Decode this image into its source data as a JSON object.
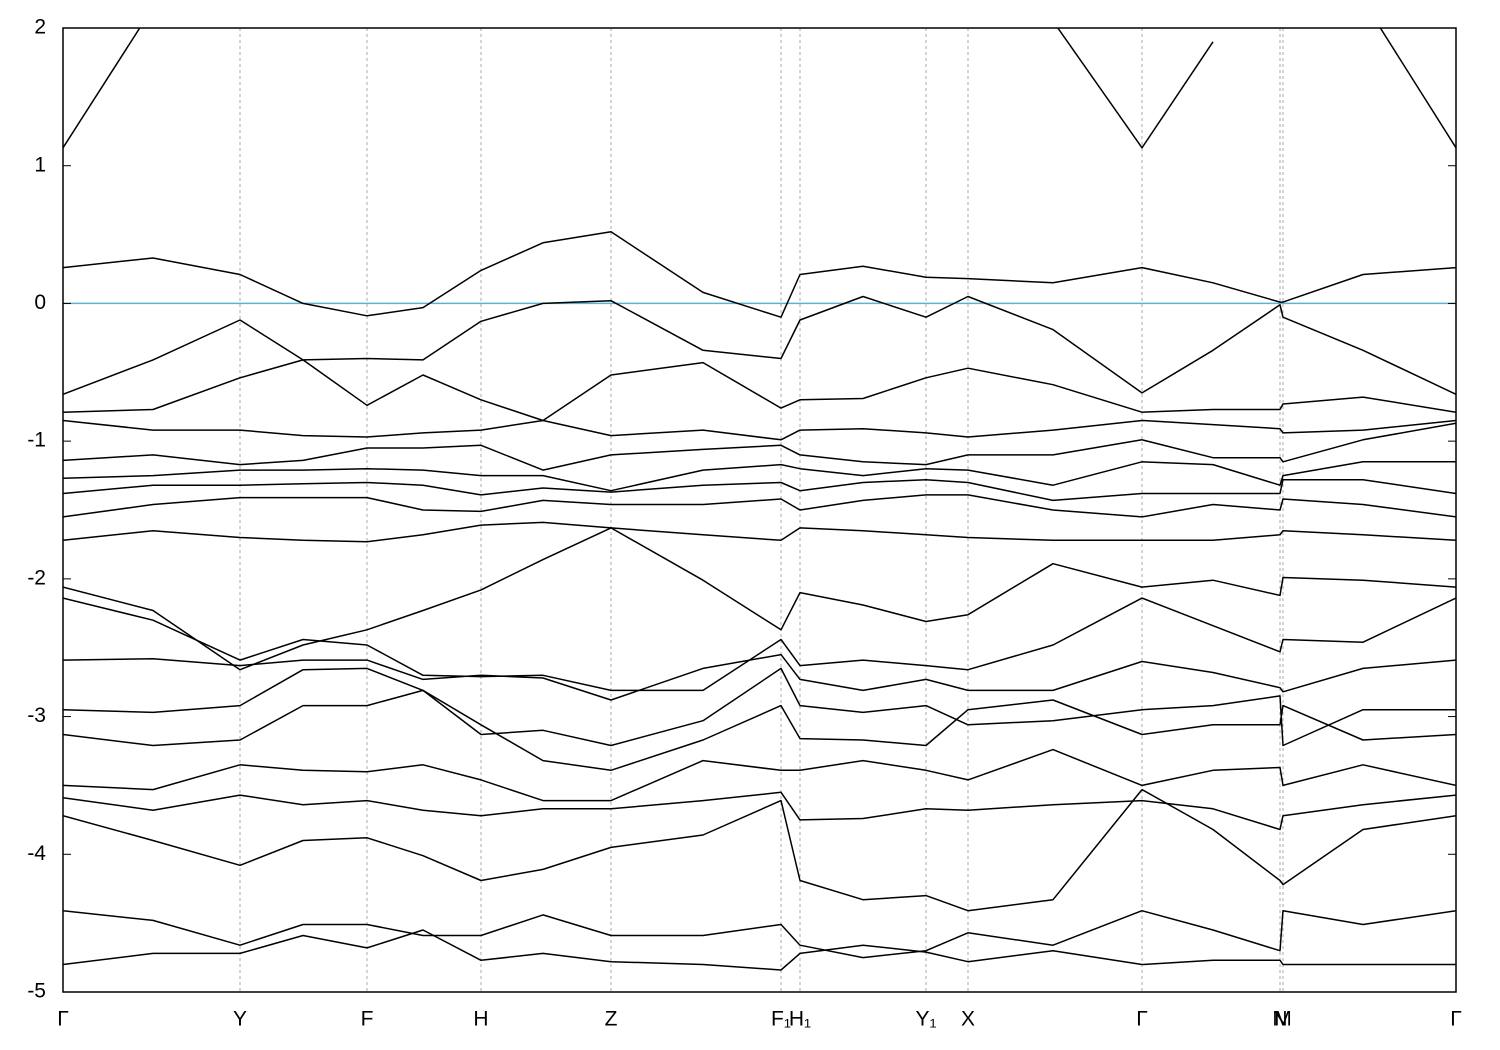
{
  "chart_data": {
    "type": "line",
    "color": "#000000",
    "grid": true,
    "xlim": [
      0,
      1393
    ],
    "ylim": [
      -5,
      2
    ],
    "yticks": [
      2,
      1,
      0,
      -1,
      -2,
      -3,
      -4,
      -5
    ],
    "xticks": [
      {
        "value": 0,
        "label": "Γ"
      },
      {
        "value": 177,
        "label": "Y"
      },
      {
        "value": 304,
        "label": "F"
      },
      {
        "value": 418,
        "label": "H"
      },
      {
        "value": 548,
        "label": "Z"
      },
      {
        "value": 718,
        "label": "F₁"
      },
      {
        "value": 737,
        "label": "H₁"
      },
      {
        "value": 863,
        "label": "Y₁"
      },
      {
        "value": 905,
        "label": "X"
      },
      {
        "value": 1079,
        "label": "Γ"
      },
      {
        "value": 1217,
        "label": "N"
      },
      {
        "value": 1220,
        "label": "M"
      },
      {
        "value": 1393,
        "label": "Γ"
      }
    ],
    "hline": {
      "value": 0,
      "color": "#5ab4d0"
    },
    "x": [
      0,
      90,
      177,
      240,
      304,
      360,
      418,
      480,
      548,
      640,
      718,
      737,
      800,
      863,
      905,
      990,
      1079,
      1150,
      1217,
      1220,
      1300,
      1393
    ],
    "series": [
      {
        "values": [
          1.13,
          2.15,
          null,
          null,
          null,
          null,
          null,
          null,
          null,
          null,
          null,
          null,
          null,
          null,
          null,
          2.05,
          1.13,
          1.9,
          null,
          null,
          2.2,
          1.13
        ]
      },
      {
        "values": [
          0.26,
          0.33,
          0.21,
          0.0,
          -0.09,
          -0.03,
          0.24,
          0.44,
          0.52,
          0.08,
          -0.1,
          0.21,
          0.27,
          0.19,
          0.18,
          0.15,
          0.26,
          0.15,
          0.01,
          0.01,
          0.21,
          0.26
        ]
      },
      {
        "values": [
          -0.66,
          -0.41,
          -0.12,
          -0.41,
          -0.4,
          -0.41,
          -0.13,
          0.0,
          0.02,
          -0.34,
          -0.4,
          -0.12,
          0.05,
          -0.1,
          0.05,
          -0.19,
          -0.65,
          -0.34,
          -0.01,
          -0.1,
          -0.34,
          -0.66
        ]
      },
      {
        "values": [
          -0.79,
          -0.77,
          -0.54,
          -0.41,
          -0.74,
          -0.52,
          -0.7,
          -0.85,
          -0.52,
          -0.43,
          -0.76,
          -0.7,
          -0.69,
          -0.54,
          -0.47,
          -0.59,
          -0.79,
          -0.77,
          -0.77,
          -0.73,
          -0.68,
          -0.79
        ]
      },
      {
        "values": [
          -0.85,
          -0.92,
          -0.92,
          -0.96,
          -0.97,
          -0.94,
          -0.92,
          -0.85,
          -0.96,
          -0.92,
          -0.99,
          -0.92,
          -0.91,
          -0.94,
          -0.97,
          -0.92,
          -0.85,
          -0.88,
          -0.91,
          -0.94,
          -0.92,
          -0.85
        ]
      },
      {
        "values": [
          -1.14,
          -1.1,
          -1.17,
          -1.14,
          -1.05,
          -1.05,
          -1.03,
          -1.21,
          -1.1,
          -1.06,
          -1.03,
          -1.1,
          -1.15,
          -1.17,
          -1.1,
          -1.1,
          -0.99,
          -1.12,
          -1.12,
          -1.15,
          -0.99,
          -0.87
        ]
      },
      {
        "values": [
          -1.27,
          -1.25,
          -1.21,
          -1.21,
          -1.2,
          -1.21,
          -1.25,
          -1.25,
          -1.36,
          -1.21,
          -1.17,
          -1.2,
          -1.25,
          -1.2,
          -1.21,
          -1.32,
          -1.15,
          -1.17,
          -1.32,
          -1.25,
          -1.15,
          -1.15
        ]
      },
      {
        "values": [
          -1.38,
          -1.32,
          -1.32,
          -1.31,
          -1.3,
          -1.32,
          -1.39,
          -1.34,
          -1.37,
          -1.32,
          -1.3,
          -1.36,
          -1.3,
          -1.28,
          -1.3,
          -1.43,
          -1.38,
          -1.38,
          -1.38,
          -1.28,
          -1.28,
          -1.38
        ]
      },
      {
        "values": [
          -1.55,
          -1.46,
          -1.41,
          -1.41,
          -1.41,
          -1.5,
          -1.51,
          -1.43,
          -1.46,
          -1.46,
          -1.42,
          -1.5,
          -1.43,
          -1.39,
          -1.39,
          -1.5,
          -1.55,
          -1.46,
          -1.5,
          -1.42,
          -1.46,
          -1.55
        ]
      },
      {
        "values": [
          -1.72,
          -1.65,
          -1.7,
          -1.72,
          -1.73,
          -1.68,
          -1.61,
          -1.59,
          -1.63,
          -1.68,
          -1.72,
          -1.63,
          -1.65,
          -1.68,
          -1.7,
          -1.72,
          -1.72,
          -1.72,
          -1.68,
          -1.65,
          -1.68,
          -1.72
        ]
      },
      {
        "values": [
          -2.06,
          -2.23,
          -2.66,
          -2.48,
          -2.37,
          -2.23,
          -2.08,
          -1.86,
          -1.63,
          -2.01,
          -2.37,
          -2.1,
          -2.19,
          -2.31,
          -2.26,
          -1.89,
          -2.06,
          -2.01,
          -2.12,
          -1.99,
          -2.01,
          -2.06
        ]
      },
      {
        "values": [
          -2.14,
          -2.3,
          -2.59,
          -2.44,
          -2.48,
          -2.7,
          -2.71,
          -2.7,
          -2.81,
          -2.81,
          -2.44,
          -2.63,
          -2.59,
          -2.63,
          -2.66,
          -2.48,
          -2.14,
          -2.34,
          -2.53,
          -2.44,
          -2.46,
          -2.14
        ]
      },
      {
        "values": [
          -2.59,
          -2.58,
          -2.63,
          -2.59,
          -2.59,
          -2.73,
          -2.7,
          -2.72,
          -2.88,
          -2.65,
          -2.55,
          -2.73,
          -2.81,
          -2.73,
          -2.81,
          -2.81,
          -2.6,
          -2.68,
          -2.79,
          -2.82,
          -2.65,
          -2.59
        ]
      },
      {
        "values": [
          -2.95,
          -2.97,
          -2.92,
          -2.66,
          -2.65,
          -2.81,
          -3.13,
          -3.1,
          -3.21,
          -3.03,
          -2.65,
          -2.92,
          -2.97,
          -2.92,
          -3.06,
          -3.03,
          -2.95,
          -2.92,
          -2.85,
          -3.21,
          -2.95,
          -2.95
        ]
      },
      {
        "values": [
          -3.13,
          -3.21,
          -3.17,
          -2.92,
          -2.92,
          -2.81,
          -3.06,
          -3.32,
          -3.39,
          -3.17,
          -2.92,
          -3.16,
          -3.17,
          -3.21,
          -2.95,
          -2.88,
          -3.13,
          -3.06,
          -3.06,
          -2.92,
          -3.17,
          -3.13
        ]
      },
      {
        "values": [
          -3.5,
          -3.53,
          -3.35,
          -3.39,
          -3.4,
          -3.35,
          -3.46,
          -3.61,
          -3.61,
          -3.32,
          -3.39,
          -3.39,
          -3.32,
          -3.39,
          -3.46,
          -3.24,
          -3.5,
          -3.39,
          -3.37,
          -3.5,
          -3.35,
          -3.5
        ]
      },
      {
        "values": [
          -3.59,
          -3.68,
          -3.57,
          -3.64,
          -3.61,
          -3.68,
          -3.72,
          -3.67,
          -3.67,
          -3.61,
          -3.55,
          -3.75,
          -3.74,
          -3.67,
          -3.68,
          -3.64,
          -3.61,
          -3.67,
          -3.82,
          -3.72,
          -3.64,
          -3.57
        ]
      },
      {
        "values": [
          -3.72,
          -3.9,
          -4.08,
          -3.9,
          -3.88,
          -4.01,
          -4.19,
          -4.11,
          -3.95,
          -3.86,
          -3.61,
          -4.19,
          -4.33,
          -4.3,
          -4.41,
          -4.33,
          -3.53,
          -3.82,
          -4.19,
          -4.22,
          -3.82,
          -3.72
        ]
      },
      {
        "values": [
          -4.41,
          -4.48,
          -4.66,
          -4.51,
          -4.51,
          -4.59,
          -4.59,
          -4.44,
          -4.59,
          -4.59,
          -4.51,
          -4.66,
          -4.75,
          -4.7,
          -4.57,
          -4.66,
          -4.41,
          -4.55,
          -4.7,
          -4.41,
          -4.51,
          -4.41
        ]
      },
      {
        "values": [
          -4.8,
          -4.72,
          -4.72,
          -4.59,
          -4.68,
          -4.55,
          -4.77,
          -4.72,
          -4.78,
          -4.8,
          -4.84,
          -4.72,
          -4.66,
          -4.71,
          -4.78,
          -4.7,
          -4.8,
          -4.77,
          -4.77,
          -4.8,
          -4.8,
          -4.8
        ]
      }
    ]
  }
}
